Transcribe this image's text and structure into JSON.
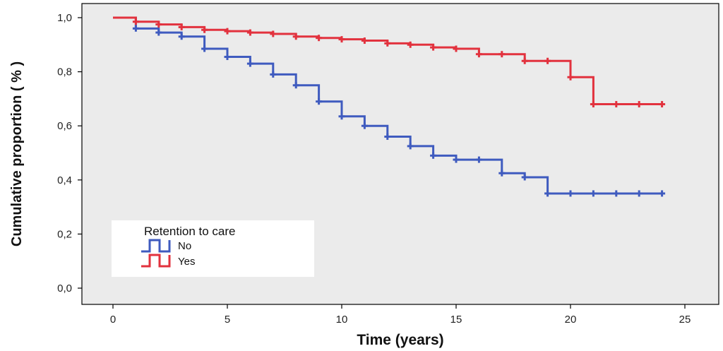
{
  "chart_data": {
    "type": "line",
    "subtype": "kaplan-meier-step",
    "xlabel": "Time (years)",
    "ylabel": "Cumulative proportion ( % )",
    "xlim": [
      0,
      25
    ],
    "ylim": [
      0,
      1
    ],
    "x_ticks": [
      0,
      5,
      10,
      15,
      20,
      25
    ],
    "x_tick_labels": [
      "0",
      "5",
      "10",
      "15",
      "20",
      "25"
    ],
    "y_ticks": [
      0,
      0.2,
      0.4,
      0.6,
      0.8,
      1.0
    ],
    "y_tick_labels": [
      "0,0",
      "0,2",
      "0,4",
      "0,6",
      "0,8",
      "1,0"
    ],
    "grid": false,
    "background": "#ebebeb",
    "legend": {
      "title": "Retention to care",
      "placement": "bottom-left"
    },
    "series": [
      {
        "name": "No",
        "color": "#3f5bbf",
        "x": [
          0,
          1,
          2,
          3,
          4,
          5,
          6,
          7,
          8,
          9,
          10,
          11,
          12,
          13,
          14,
          15,
          16,
          17,
          18,
          19,
          20,
          21,
          22,
          23,
          24
        ],
        "y": [
          1.0,
          0.96,
          0.945,
          0.93,
          0.885,
          0.855,
          0.83,
          0.79,
          0.75,
          0.69,
          0.635,
          0.6,
          0.56,
          0.525,
          0.49,
          0.475,
          0.475,
          0.425,
          0.41,
          0.35,
          0.35,
          0.35,
          0.35,
          0.35,
          0.35
        ],
        "censored": [
          false,
          true,
          true,
          true,
          true,
          true,
          true,
          true,
          true,
          true,
          true,
          true,
          true,
          true,
          true,
          true,
          true,
          true,
          true,
          true,
          true,
          true,
          true,
          true,
          true
        ]
      },
      {
        "name": "Yes",
        "color": "#e2323e",
        "x": [
          0,
          1,
          2,
          3,
          4,
          5,
          6,
          7,
          8,
          9,
          10,
          11,
          12,
          13,
          14,
          15,
          16,
          17,
          18,
          19,
          20,
          21,
          22,
          23,
          24
        ],
        "y": [
          1.0,
          0.985,
          0.975,
          0.965,
          0.955,
          0.95,
          0.945,
          0.94,
          0.93,
          0.925,
          0.92,
          0.915,
          0.905,
          0.9,
          0.89,
          0.885,
          0.865,
          0.865,
          0.84,
          0.84,
          0.78,
          0.68,
          0.68,
          0.68,
          0.68
        ],
        "censored": [
          false,
          true,
          true,
          true,
          true,
          true,
          true,
          true,
          true,
          true,
          true,
          true,
          true,
          true,
          true,
          true,
          true,
          true,
          true,
          true,
          true,
          true,
          true,
          true,
          true
        ]
      }
    ]
  }
}
